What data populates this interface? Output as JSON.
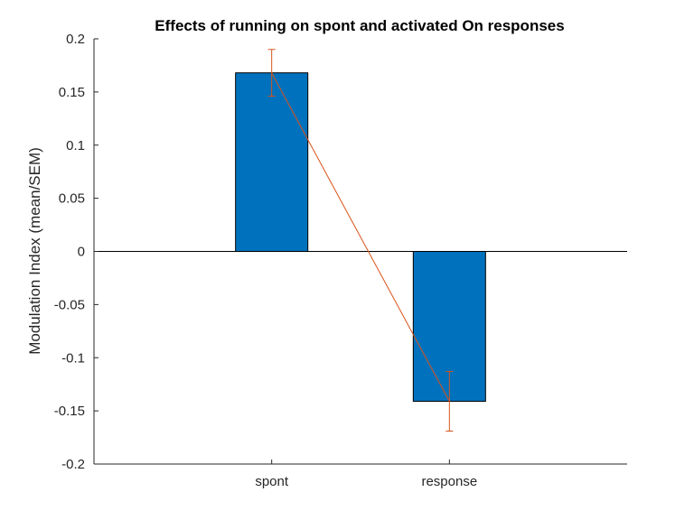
{
  "chart_data": {
    "type": "bar",
    "title": "Effects of running on spont and activated On responses",
    "xlabel": "",
    "ylabel": "Modulation Index (mean/SEM)",
    "categories": [
      "spont",
      "response"
    ],
    "values": [
      0.168,
      -0.141
    ],
    "error": [
      0.022,
      0.028
    ],
    "ylim": [
      -0.2,
      0.2
    ],
    "yticks": [
      -0.2,
      -0.15,
      -0.1,
      -0.05,
      0,
      0.05,
      0.1,
      0.15,
      0.2
    ],
    "ytick_labels": [
      "-0.2",
      "-0.15",
      "-0.1",
      "-0.05",
      "0",
      "0.05",
      "0.1",
      "0.15",
      "0.2"
    ],
    "grid": false,
    "colors": {
      "bar": "#0072BD",
      "errorbar": "#D95319",
      "axis": "#262626"
    }
  }
}
